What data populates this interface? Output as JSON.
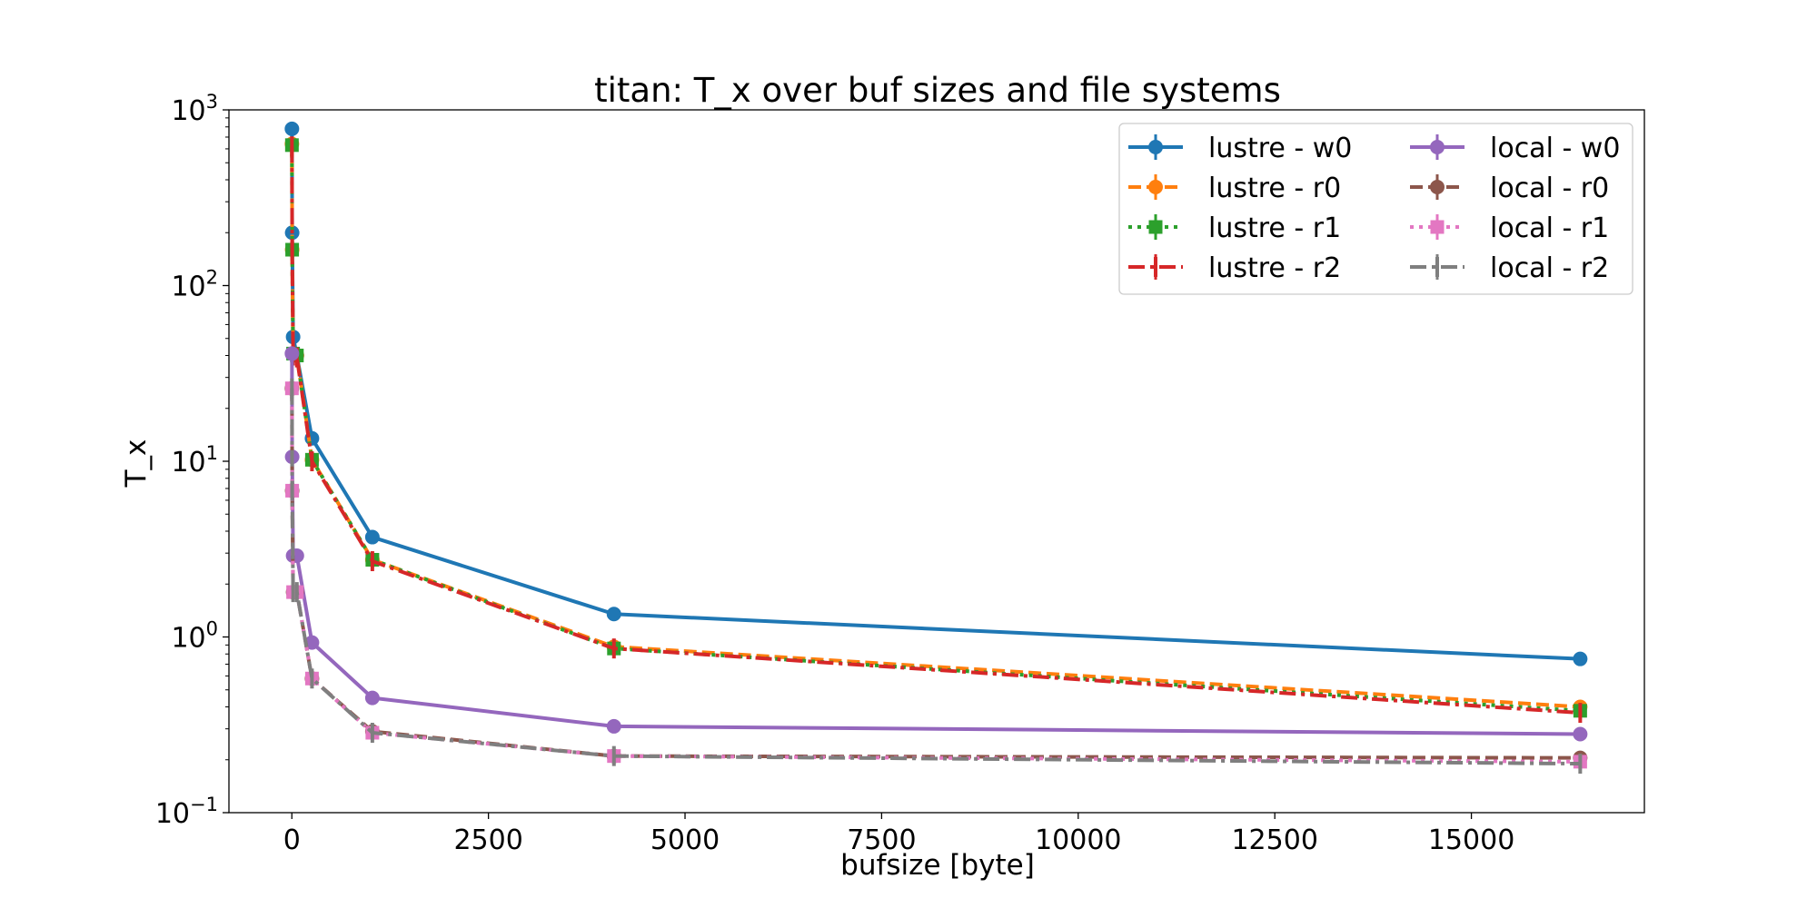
{
  "chart_data": {
    "type": "line",
    "title": "titan: T_x over buf sizes and file systems",
    "xlabel": "bufsize [byte]",
    "ylabel": "T_x",
    "yscale": "log",
    "xlim": [
      -800,
      17200
    ],
    "ylim": [
      0.1,
      1000
    ],
    "grid": false,
    "legend_position": "upper right",
    "legend_columns": 2,
    "x_ticks": [
      0,
      2500,
      5000,
      7500,
      10000,
      12500,
      15000
    ],
    "x_tick_labels": [
      "0",
      "2500",
      "5000",
      "7500",
      "10000",
      "12500",
      "15000"
    ],
    "y_ticks": [
      0.1,
      1,
      10,
      100,
      1000
    ],
    "y_tick_labels": [
      {
        "base": "10",
        "exp": "−1"
      },
      {
        "base": "10",
        "exp": "0"
      },
      {
        "base": "10",
        "exp": "1"
      },
      {
        "base": "10",
        "exp": "2"
      },
      {
        "base": "10",
        "exp": "3"
      }
    ],
    "x": [
      1,
      4,
      16,
      64,
      256,
      1024,
      4096,
      16384
    ],
    "series": [
      {
        "name": "lustre - w0",
        "color": "#1f77b4",
        "dash": "solid",
        "marker": "circle",
        "values": [
          780,
          200,
          51,
          40,
          13.5,
          3.7,
          1.35,
          0.75
        ]
      },
      {
        "name": "lustre - r0",
        "color": "#ff7f0e",
        "dash": "dashed",
        "marker": "circle",
        "values": [
          640,
          160,
          41,
          40,
          10.2,
          2.75,
          0.88,
          0.4
        ]
      },
      {
        "name": "lustre - r1",
        "color": "#2ca02c",
        "dash": "dotted",
        "marker": "square",
        "values": [
          630,
          160,
          41,
          40,
          10.2,
          2.75,
          0.86,
          0.38
        ]
      },
      {
        "name": "lustre - r2",
        "color": "#d62728",
        "dash": "dashdot",
        "marker": "vline",
        "values": [
          620,
          158,
          40,
          39,
          10.0,
          2.7,
          0.86,
          0.37
        ]
      },
      {
        "name": "local - w0",
        "color": "#9467bd",
        "dash": "solid",
        "marker": "circle",
        "values": [
          41,
          10.6,
          2.9,
          2.9,
          0.93,
          0.45,
          0.31,
          0.28
        ]
      },
      {
        "name": "local - r0",
        "color": "#8c564b",
        "dash": "dashed",
        "marker": "circle",
        "values": [
          26,
          6.8,
          1.8,
          1.8,
          0.58,
          0.29,
          0.21,
          0.205
        ]
      },
      {
        "name": "local - r1",
        "color": "#e377c2",
        "dash": "dotted",
        "marker": "square",
        "values": [
          26,
          6.8,
          1.8,
          1.8,
          0.58,
          0.285,
          0.21,
          0.195
        ]
      },
      {
        "name": "local - r2",
        "color": "#7f7f7f",
        "dash": "dashdot",
        "marker": "vline",
        "values": [
          26,
          6.8,
          1.8,
          1.8,
          0.58,
          0.285,
          0.21,
          0.19
        ]
      }
    ]
  }
}
